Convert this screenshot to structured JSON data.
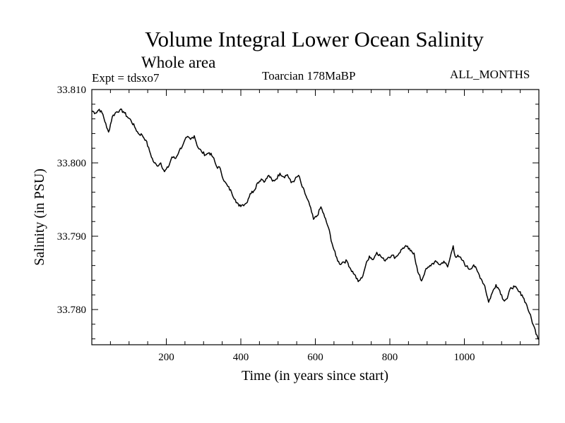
{
  "chart_data": {
    "type": "line",
    "title": "Volume Integral Lower Ocean Salinity",
    "subtitle": "Whole area",
    "experiment_label": "Expt = tdsxo7",
    "model_label": "Toarcian 178MaBP",
    "period_label": "ALL_MONTHS",
    "xlabel": "Time (in years since start)",
    "ylabel": "Salinity (in PSU)",
    "xlim": [
      0,
      1200
    ],
    "ylim": [
      33.7752,
      33.81
    ],
    "x_ticks": [
      200,
      400,
      600,
      800,
      1000
    ],
    "x_tick_labels": [
      "200",
      "400",
      "600",
      "800",
      "1000"
    ],
    "y_ticks": [
      33.78,
      33.79,
      33.8,
      33.81
    ],
    "y_tick_labels": [
      "33.780",
      "33.790",
      "33.800",
      "33.810"
    ],
    "series": [
      {
        "name": "salinity",
        "color": "#000000",
        "x": [
          0,
          10,
          20,
          30,
          40,
          45,
          55,
          65,
          75,
          85,
          95,
          105,
          115,
          125,
          135,
          145,
          155,
          165,
          175,
          185,
          195,
          205,
          215,
          225,
          235,
          245,
          255,
          265,
          275,
          285,
          295,
          305,
          315,
          325,
          335,
          345,
          355,
          365,
          375,
          385,
          395,
          405,
          415,
          425,
          435,
          445,
          455,
          465,
          475,
          485,
          495,
          505,
          515,
          525,
          535,
          545,
          555,
          565,
          575,
          585,
          595,
          605,
          615,
          625,
          635,
          645,
          655,
          665,
          675,
          685,
          695,
          705,
          715,
          725,
          735,
          745,
          755,
          765,
          775,
          785,
          795,
          805,
          815,
          825,
          835,
          845,
          855,
          865,
          875,
          885,
          895,
          905,
          915,
          925,
          935,
          945,
          955,
          960,
          970,
          975,
          985,
          995,
          1005,
          1015,
          1025,
          1035,
          1045,
          1055,
          1065,
          1075,
          1085,
          1095,
          1105,
          1115,
          1125,
          1135,
          1145,
          1155,
          1165,
          1175,
          1185,
          1195,
          1200
        ],
        "values": [
          33.8071,
          33.8068,
          33.8073,
          33.8066,
          33.8048,
          33.8042,
          33.8063,
          33.8069,
          33.8072,
          33.807,
          33.8063,
          33.8058,
          33.8049,
          33.804,
          33.8038,
          33.8031,
          33.8016,
          33.8002,
          33.7996,
          33.8,
          33.7988,
          33.7994,
          33.8008,
          33.8006,
          33.8017,
          33.8025,
          33.8035,
          33.8032,
          33.8037,
          33.8021,
          33.8015,
          33.8011,
          33.8014,
          33.8008,
          33.7995,
          33.7992,
          33.7975,
          33.7968,
          33.796,
          33.795,
          33.7941,
          33.7943,
          33.7945,
          33.7958,
          33.7962,
          33.7973,
          33.7978,
          33.7975,
          33.7983,
          33.7975,
          33.7978,
          33.7986,
          33.7981,
          33.7984,
          33.7973,
          33.7977,
          33.7983,
          33.7967,
          33.7955,
          33.7942,
          33.7923,
          33.7928,
          33.794,
          33.7926,
          33.7912,
          33.789,
          33.7873,
          33.7862,
          33.7865,
          33.7866,
          33.7855,
          33.7848,
          33.7838,
          33.7843,
          33.786,
          33.7873,
          33.7868,
          33.7878,
          33.7873,
          33.7867,
          33.7871,
          33.7874,
          33.7871,
          33.7877,
          33.7884,
          33.7886,
          33.788,
          33.7877,
          33.7851,
          33.7839,
          33.7853,
          33.7858,
          33.7863,
          33.7865,
          33.7861,
          33.7866,
          33.7858,
          33.7867,
          33.7887,
          33.7873,
          33.7872,
          33.7867,
          33.7859,
          33.7855,
          33.7861,
          33.7852,
          33.7842,
          33.7832,
          33.781,
          33.7823,
          33.7834,
          33.7826,
          33.7813,
          33.7815,
          33.783,
          33.7831,
          33.7825,
          33.782,
          33.7809,
          33.7795,
          33.7779,
          33.7765,
          33.7759
        ]
      }
    ]
  }
}
